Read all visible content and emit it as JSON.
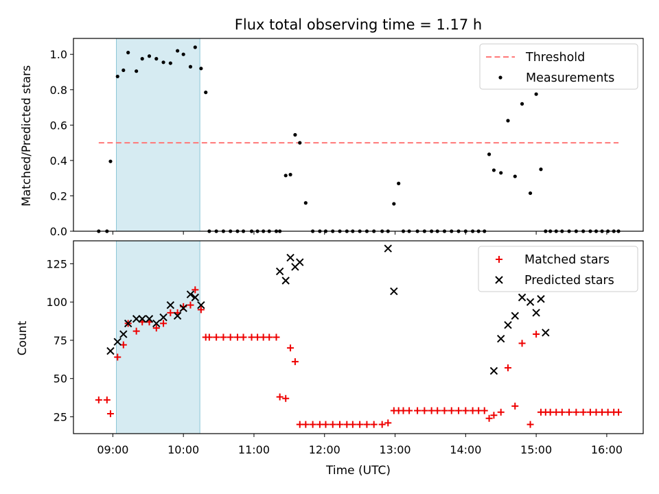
{
  "title": "Flux total observing time = 1.17 h",
  "xlabel": "Time (UTC)",
  "chart_data": [
    {
      "type": "scatter",
      "ylabel": "Matched/Predicted stars",
      "ylim": [
        0,
        1.09
      ],
      "yticks": [
        "0.0",
        "0.2",
        "0.4",
        "0.6",
        "0.8",
        "1.0"
      ],
      "ytick_values": [
        0,
        0.2,
        0.4,
        0.6,
        0.8,
        1.0
      ],
      "highlight_span": [
        "09:03",
        "10:14"
      ],
      "legend": {
        "placement": "upper right",
        "entries": [
          "Threshold",
          "Measurements"
        ]
      },
      "threshold": {
        "name": "Threshold",
        "y": 0.5,
        "x": [
          "08:48",
          "16:10"
        ],
        "color": "#ff7777"
      },
      "series": [
        {
          "name": "Measurements",
          "color": "#000000",
          "x": [
            "08:48",
            "08:55",
            "08:58",
            "09:04",
            "09:09",
            "09:13",
            "09:20",
            "09:25",
            "09:31",
            "09:37",
            "09:43",
            "09:49",
            "09:55",
            "10:00",
            "10:06",
            "10:10",
            "10:15",
            "10:19",
            "10:22",
            "10:28",
            "10:34",
            "10:40",
            "10:46",
            "10:51",
            "10:58",
            "11:03",
            "11:08",
            "11:13",
            "11:19",
            "11:22",
            "11:27",
            "11:31",
            "11:35",
            "11:39",
            "11:44",
            "11:50",
            "11:56",
            "12:01",
            "12:07",
            "12:13",
            "12:19",
            "12:24",
            "12:30",
            "12:36",
            "12:42",
            "12:49",
            "12:54",
            "12:59",
            "13:03",
            "13:07",
            "13:12",
            "13:19",
            "13:25",
            "13:31",
            "13:36",
            "13:42",
            "13:48",
            "13:54",
            "14:00",
            "14:06",
            "14:11",
            "14:16",
            "14:20",
            "14:24",
            "14:30",
            "14:36",
            "14:42",
            "14:48",
            "14:55",
            "15:00",
            "15:04",
            "15:08",
            "15:12",
            "15:17",
            "15:22",
            "15:28",
            "15:34",
            "15:40",
            "15:46",
            "15:51",
            "15:56",
            "16:01",
            "16:06",
            "16:10"
          ],
          "y": [
            0,
            0,
            0.395,
            0.875,
            0.91,
            1.01,
            0.905,
            0.975,
            0.99,
            0.975,
            0.955,
            0.95,
            1.02,
            1.0,
            0.93,
            1.04,
            0.92,
            0.785,
            0,
            0,
            0,
            0,
            0,
            0,
            0,
            0,
            0,
            0,
            0,
            0,
            0.315,
            0.32,
            0.545,
            0.5,
            0.16,
            0,
            0,
            0,
            0,
            0,
            0,
            0,
            0,
            0,
            0,
            0,
            0,
            0.155,
            0.27,
            0,
            0,
            0,
            0,
            0,
            0,
            0,
            0,
            0,
            0,
            0,
            0,
            0,
            0.435,
            0.345,
            0.33,
            0.625,
            0.31,
            0.72,
            0.215,
            0.775,
            0.35,
            0,
            0,
            0,
            0,
            0,
            0,
            0,
            0,
            0,
            0,
            0,
            0,
            0
          ]
        }
      ]
    },
    {
      "type": "scatter",
      "ylabel": "Count",
      "ylim": [
        14,
        140
      ],
      "yticks": [
        "25",
        "50",
        "75",
        "100",
        "125"
      ],
      "ytick_values": [
        25,
        50,
        75,
        100,
        125
      ],
      "xticks": [
        "09:00",
        "10:00",
        "11:00",
        "12:00",
        "13:00",
        "14:00",
        "15:00",
        "16:00"
      ],
      "highlight_span": [
        "09:03",
        "10:14"
      ],
      "legend": {
        "placement": "upper right",
        "entries": [
          "Matched stars",
          "Predicted stars"
        ]
      },
      "series": [
        {
          "name": "Matched stars",
          "marker": "+",
          "color": "#ee0000",
          "x": [
            "08:48",
            "08:55",
            "08:58",
            "09:04",
            "09:09",
            "09:13",
            "09:20",
            "09:25",
            "09:31",
            "09:37",
            "09:43",
            "09:49",
            "09:55",
            "10:00",
            "10:06",
            "10:10",
            "10:15",
            "10:19",
            "10:22",
            "10:28",
            "10:34",
            "10:40",
            "10:46",
            "10:51",
            "10:58",
            "11:03",
            "11:08",
            "11:13",
            "11:19",
            "11:22",
            "11:27",
            "11:31",
            "11:35",
            "11:39",
            "11:44",
            "11:50",
            "11:56",
            "12:01",
            "12:07",
            "12:13",
            "12:19",
            "12:24",
            "12:30",
            "12:36",
            "12:42",
            "12:49",
            "12:54",
            "12:59",
            "13:03",
            "13:07",
            "13:12",
            "13:19",
            "13:25",
            "13:31",
            "13:36",
            "13:42",
            "13:48",
            "13:54",
            "14:00",
            "14:06",
            "14:11",
            "14:16",
            "14:20",
            "14:24",
            "14:30",
            "14:36",
            "14:42",
            "14:48",
            "14:55",
            "15:00",
            "15:04",
            "15:08",
            "15:12",
            "15:17",
            "15:22",
            "15:28",
            "15:34",
            "15:40",
            "15:46",
            "15:51",
            "15:56",
            "16:01",
            "16:06",
            "16:10"
          ],
          "y": [
            36,
            36,
            27,
            64,
            72,
            86,
            81,
            87,
            87,
            83,
            86,
            93,
            93,
            97,
            98,
            108,
            95,
            77,
            77,
            77,
            77,
            77,
            77,
            77,
            77,
            77,
            77,
            77,
            77,
            38,
            37,
            70,
            61,
            20,
            20,
            20,
            20,
            20,
            20,
            20,
            20,
            20,
            20,
            20,
            20,
            20,
            21,
            29,
            29,
            29,
            29,
            29,
            29,
            29,
            29,
            29,
            29,
            29,
            29,
            29,
            29,
            29,
            24,
            26,
            28,
            57,
            32,
            73,
            20,
            79,
            28,
            28,
            28,
            28,
            28,
            28,
            28,
            28,
            28,
            28,
            28,
            28,
            28,
            28
          ]
        },
        {
          "name": "Predicted stars",
          "marker": "x",
          "color": "#000000",
          "x": [
            "08:58",
            "09:04",
            "09:09",
            "09:13",
            "09:20",
            "09:25",
            "09:31",
            "09:37",
            "09:43",
            "09:49",
            "09:55",
            "10:00",
            "10:06",
            "10:10",
            "10:15",
            "11:22",
            "11:27",
            "11:31",
            "11:35",
            "11:39",
            "12:54",
            "12:59",
            "14:24",
            "14:30",
            "14:36",
            "14:42",
            "14:48",
            "14:55",
            "15:00",
            "15:04",
            "15:08"
          ],
          "y": [
            68,
            74,
            79,
            86,
            89,
            89,
            89,
            86,
            90,
            98,
            91,
            96,
            105,
            103,
            98,
            120,
            114,
            129,
            123,
            126,
            135,
            107,
            55,
            76,
            85,
            91,
            103,
            100,
            93,
            102,
            80
          ]
        }
      ]
    }
  ]
}
